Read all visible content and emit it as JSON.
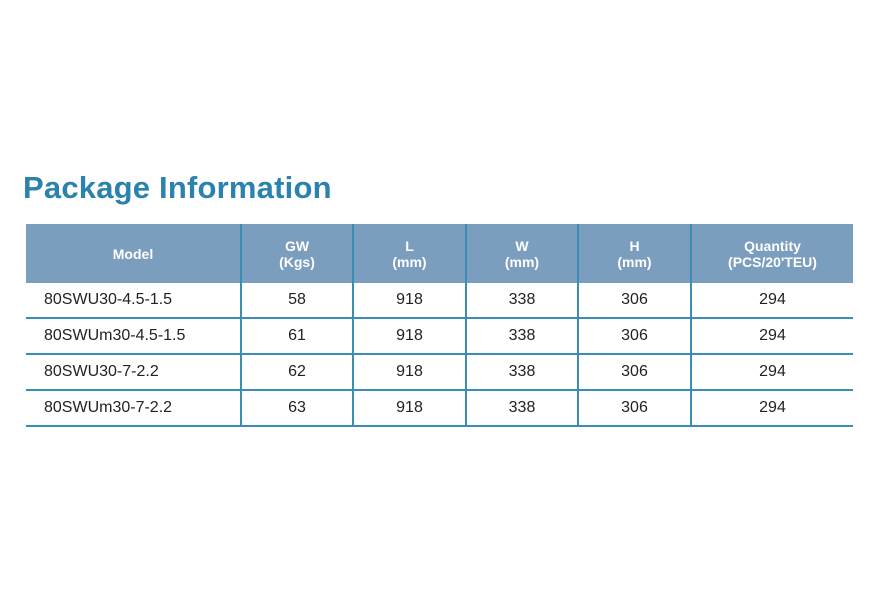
{
  "title": "Package Information",
  "table": {
    "headers": [
      {
        "line1": "Model",
        "line2": ""
      },
      {
        "line1": "GW",
        "line2": "(Kgs)"
      },
      {
        "line1": "L",
        "line2": "(mm)"
      },
      {
        "line1": "W",
        "line2": "(mm)"
      },
      {
        "line1": "H",
        "line2": "(mm)"
      },
      {
        "line1": "Quantity",
        "line2": "(PCS/20'TEU)"
      }
    ],
    "rows": [
      [
        "80SWU30-4.5-1.5",
        "58",
        "918",
        "338",
        "306",
        "294"
      ],
      [
        "80SWUm30-4.5-1.5",
        "61",
        "918",
        "338",
        "306",
        "294"
      ],
      [
        "80SWU30-7-2.2",
        "62",
        "918",
        "338",
        "306",
        "294"
      ],
      [
        "80SWUm30-7-2.2",
        "63",
        "918",
        "338",
        "306",
        "294"
      ]
    ]
  },
  "colors": {
    "title": "#2b82ad",
    "header_bg": "#7b9ebf",
    "rule": "#3b8eb3"
  }
}
